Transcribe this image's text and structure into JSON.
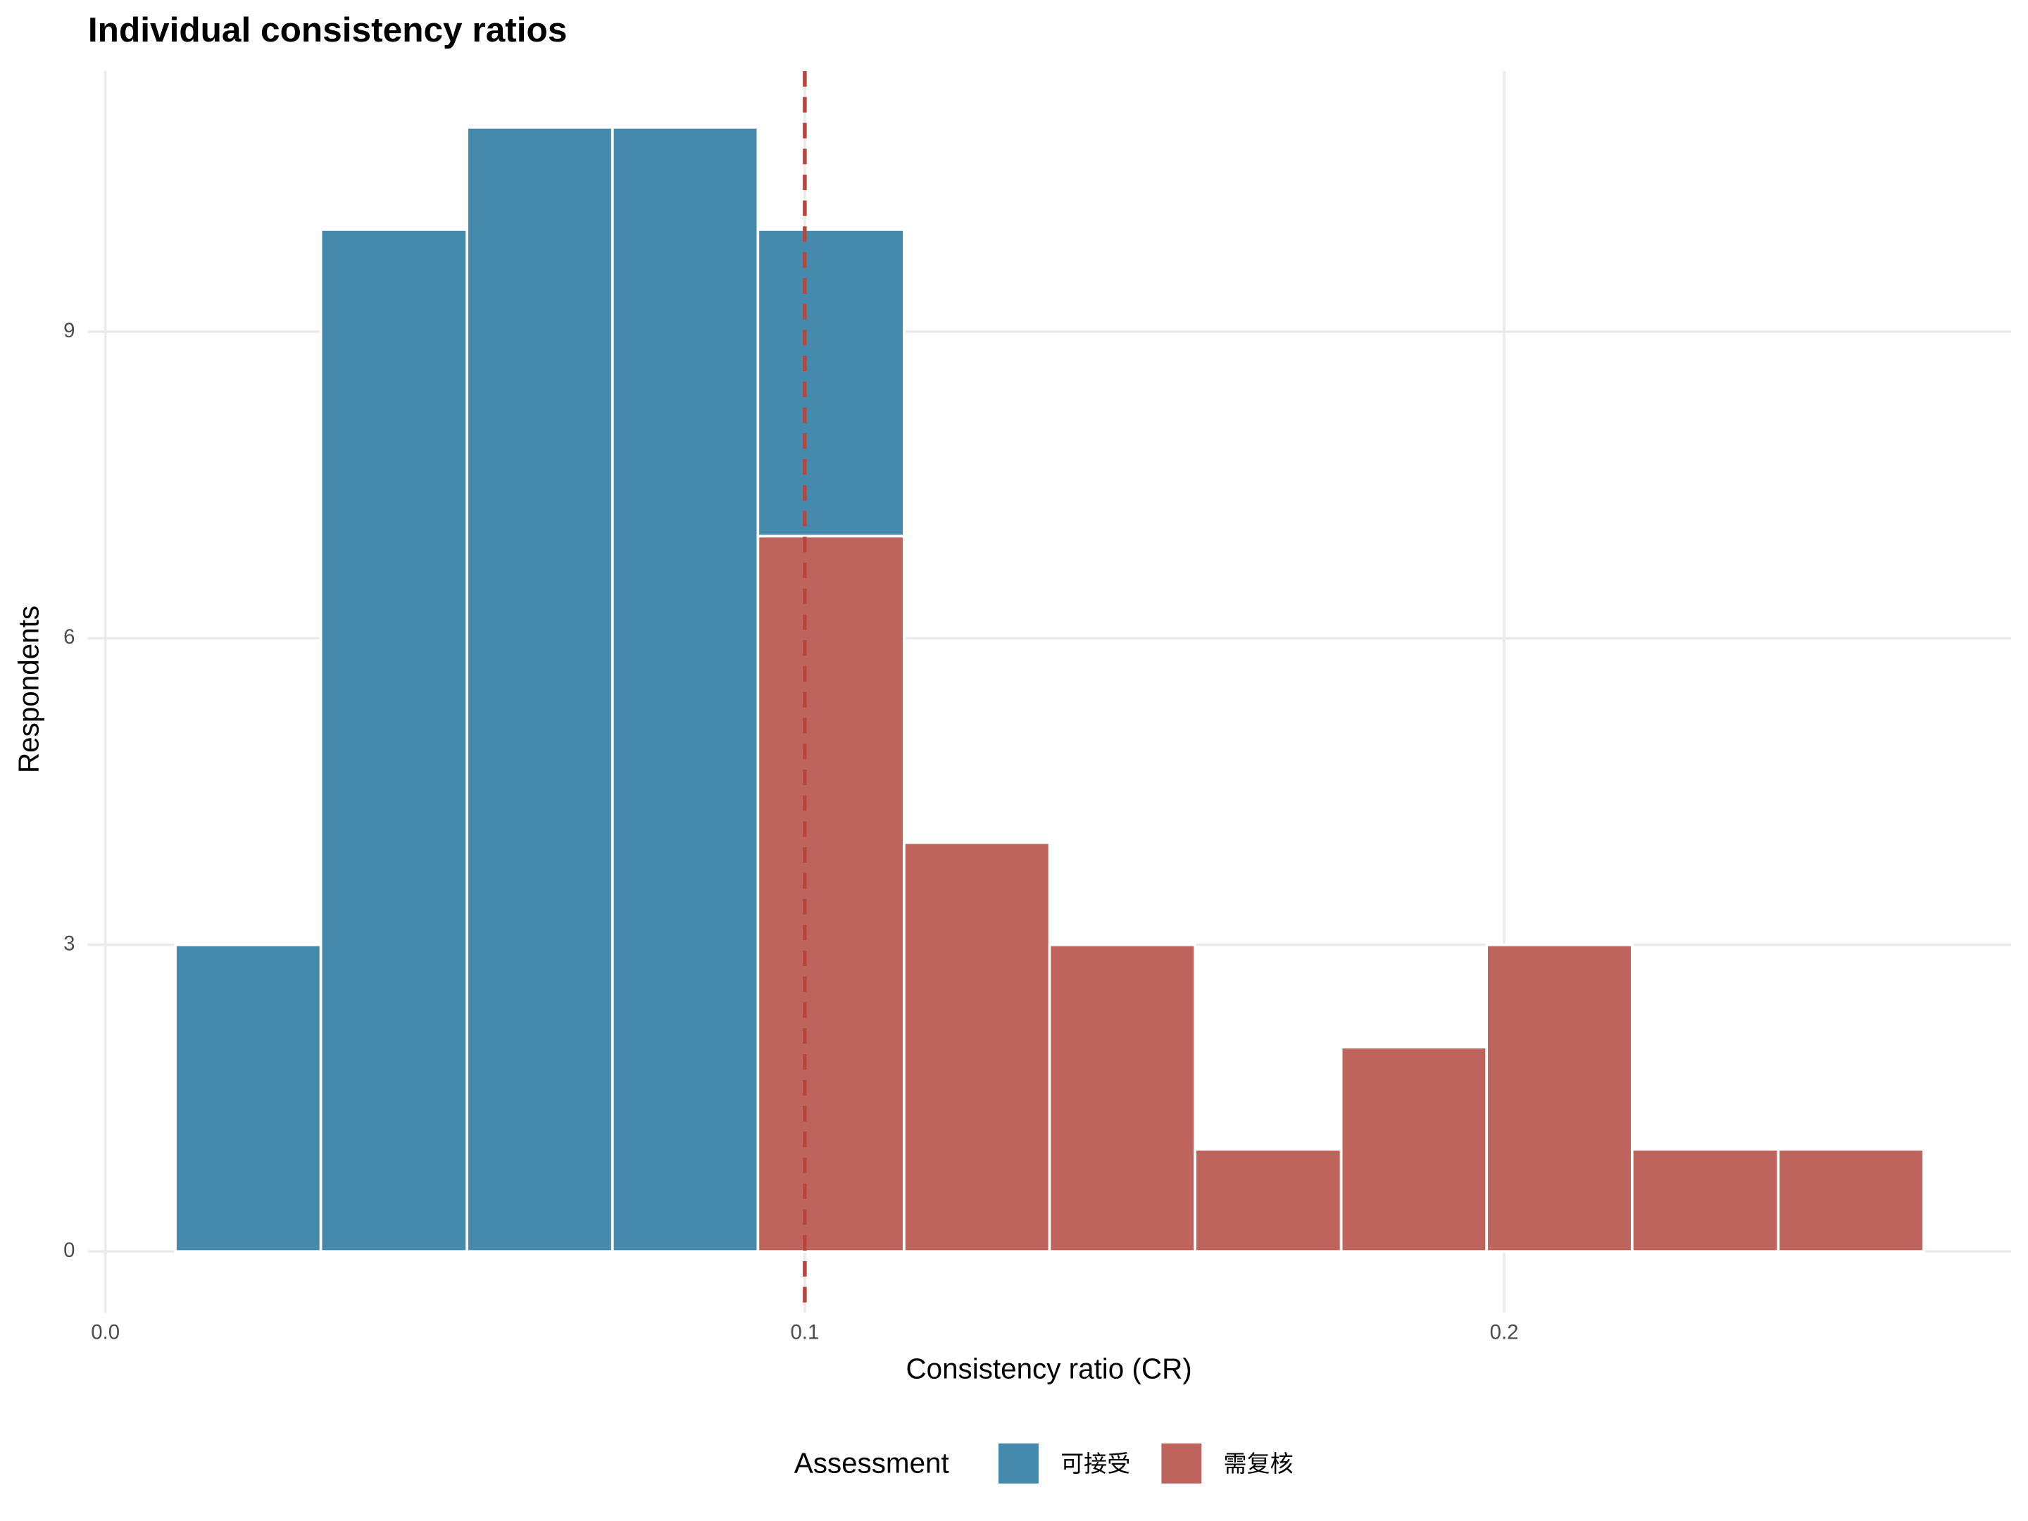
{
  "chart_data": {
    "type": "histogram",
    "title": "Individual consistency ratios",
    "x_label": "Consistency ratio (CR)",
    "y_label": "Respondents",
    "bins": [
      0.01,
      0.0308,
      0.0517,
      0.0725,
      0.0933,
      0.1142,
      0.135,
      0.1558,
      0.1767,
      0.1975,
      0.2183,
      0.2392,
      0.26
    ],
    "series": [
      {
        "name": "可接受",
        "color": "#4589ad",
        "values": [
          3,
          10,
          11,
          11,
          3,
          0,
          0,
          0,
          0,
          0,
          0,
          0
        ]
      },
      {
        "name": "需复核",
        "color": "#bf645c",
        "values": [
          0,
          0,
          0,
          0,
          7,
          4,
          3,
          1,
          2,
          3,
          1,
          1
        ]
      }
    ],
    "stacked": true,
    "legend_title": "Assessment",
    "legend_position": "bottom",
    "vline": 0.1,
    "vline_color": "#b5473f",
    "xlim": [
      -0.0025,
      0.2725
    ],
    "xticks": [
      {
        "value": 0,
        "label": "0.0"
      },
      0.1,
      0.2
    ],
    "ylim": [
      -0.6,
      11.55
    ],
    "yticks": [
      0,
      3,
      6,
      9
    ],
    "grid": true
  }
}
